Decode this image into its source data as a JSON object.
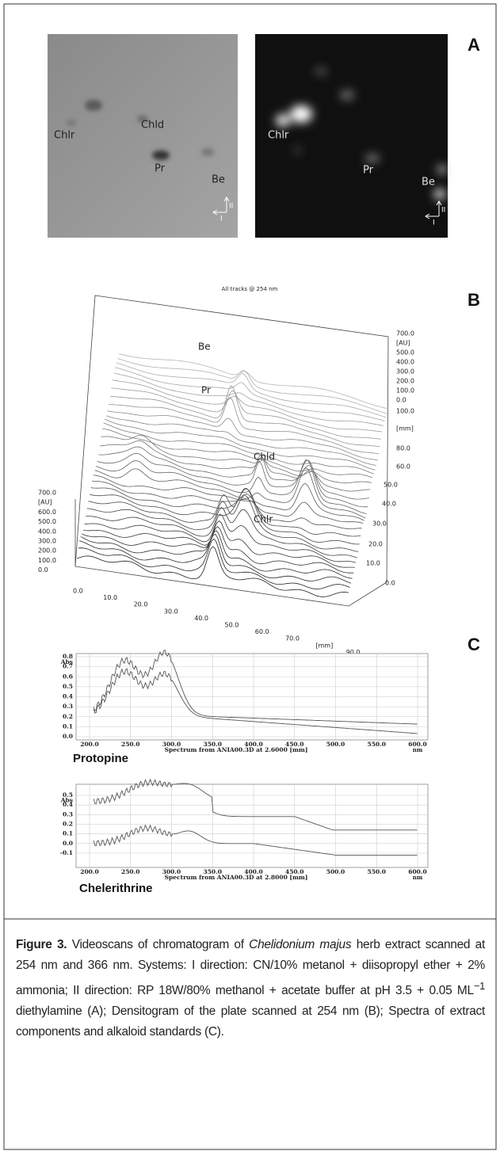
{
  "panel_a": {
    "label": "A",
    "left_plate": {
      "spots": [
        "Chlr",
        "Chld",
        "Pr",
        "Be"
      ],
      "axes": [
        "I",
        "II"
      ]
    },
    "right_plate": {
      "spots": [
        "Chlr",
        "Pr",
        "Be"
      ],
      "axes": [
        "I",
        "II"
      ]
    }
  },
  "panel_b": {
    "label": "B",
    "title": "All tracks @ 254 nm",
    "left_axis": [
      "700.0",
      "[AU]",
      "600.0",
      "500.0",
      "400.0",
      "300.0",
      "200.0",
      "100.0",
      "0.0"
    ],
    "bottom_axis": [
      "0.0",
      "10.0",
      "20.0",
      "30.0",
      "40.0",
      "50.0",
      "60.0",
      "70.0",
      "[mm]",
      "90.0"
    ],
    "right_axis_au": [
      "700.0",
      "[AU]",
      "500.0",
      "400.0",
      "300.0",
      "200.0",
      "100.0",
      "0.0"
    ],
    "right_axis_mm": [
      "100.0",
      "[mm]",
      "80.0",
      "60.0",
      "50.0",
      "40.0",
      "30.0",
      "20.0",
      "10.0",
      "0.0"
    ],
    "peaks": [
      "Be",
      "Pr",
      "Chld",
      "Chlr"
    ]
  },
  "panel_c": {
    "label": "C",
    "spectra": [
      {
        "y_unit": "Abs",
        "yticks": [
          "0.8",
          "0.7",
          "0.6",
          "0.5",
          "0.4",
          "0.3",
          "0.2",
          "0.1",
          "0.0"
        ],
        "xticks": [
          "200.0",
          "250.0",
          "300.0",
          "350.0",
          "400.0",
          "450.0",
          "500.0",
          "550.0",
          "600.0"
        ],
        "x_unit": "nm",
        "footer": "Spectrum from ANIA00.3D at 2.6000 [mm]",
        "name": "Protopine"
      },
      {
        "y_unit": "Abs",
        "yticks": [
          "0.5",
          "0.4",
          "0.3",
          "0.2",
          "0.1",
          "0.0",
          "-0.1"
        ],
        "xticks": [
          "200.0",
          "250.0",
          "300.0",
          "350.0",
          "400.0",
          "450.0",
          "500.0",
          "550.0",
          "600.0"
        ],
        "x_unit": "nm",
        "footer": "Spectrum from ANIA00.3D at 2.8000 [mm]",
        "name": "Chelerithrine"
      }
    ]
  },
  "caption": {
    "label": "Figure 3.",
    "text_1": " Videoscans of chromatogram of ",
    "species": "Chelidonium majus",
    "text_2": " herb extract scanned at 254 nm and 366 nm. Systems: I direction: CN/10% metanol + diisopropyl ether + 2% ammonia; II direction: RP 18W/80% methanol + acetate buffer at pH 3.5 + 0.05 ML",
    "superscript": "−1",
    "text_3": " diethylamine (A); Densitogram of the plate scanned at 254 nm (B); Spectra of extract components and alkaloid standards (C)."
  }
}
